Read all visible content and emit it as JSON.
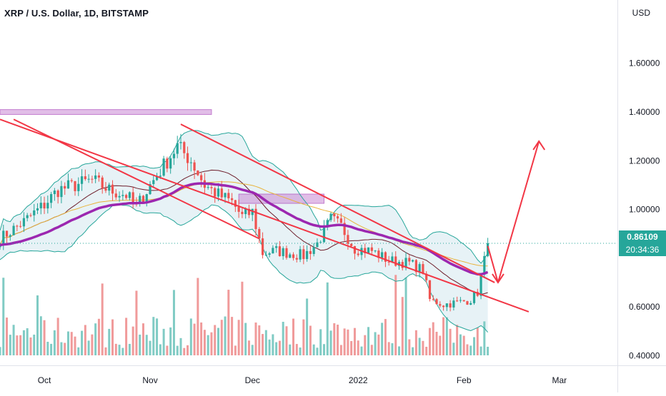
{
  "header": {
    "title": "XRP / U.S. Dollar, 1D, BITSTAMP",
    "currency": "USD"
  },
  "colors": {
    "up": "#26a69a",
    "down": "#ef5350",
    "volume_up": "#80cbc4",
    "volume_down": "#f09a9a",
    "bollinger": "#26a69a",
    "bollinger_fill": "#d7eaf0",
    "ema_long": "#9c27b0",
    "ma_slow": "#e8b33a",
    "ma_mid": "#6d1d2a",
    "trendline": "#f23645",
    "zone_fill": "#ce93d8",
    "zone_edge": "#9c27b0",
    "price_line": "#26a69a",
    "axis_line": "#e0e3eb"
  },
  "price_badge": {
    "price": "0.86109",
    "countdown": "20:34:36"
  },
  "chart_data": {
    "type": "candlestick",
    "symbol": "XRP / U.S. Dollar",
    "interval": "1D",
    "exchange": "BITSTAMP",
    "y_axis": {
      "min": 0.36,
      "max": 1.86,
      "tick_values": [
        0.4,
        0.6,
        1.0,
        1.2,
        1.4,
        1.6
      ],
      "tick_labels": [
        "0.40000",
        "0.60000",
        "1.00000",
        "1.20000",
        "1.40000",
        "1.60000"
      ]
    },
    "x_axis": {
      "start": "2021-09-18",
      "end": "2022-03-18",
      "ticks": [
        {
          "date": "2021-10-01",
          "label": "Oct"
        },
        {
          "date": "2021-11-01",
          "label": "Nov"
        },
        {
          "date": "2021-12-01",
          "label": "Dec"
        },
        {
          "date": "2022-01-01",
          "label": "2022"
        },
        {
          "date": "2022-02-01",
          "label": "Feb"
        },
        {
          "date": "2022-03-01",
          "label": "Mar"
        }
      ]
    },
    "candle_anchors": [
      [
        "2021-09-18",
        0.88
      ],
      [
        "2021-09-25",
        0.95
      ],
      [
        "2021-10-01",
        1.02
      ],
      [
        "2021-10-05",
        1.08
      ],
      [
        "2021-10-10",
        1.1
      ],
      [
        "2021-10-15",
        1.12
      ],
      [
        "2021-10-20",
        1.08
      ],
      [
        "2021-10-25",
        1.06
      ],
      [
        "2021-10-28",
        1.01
      ],
      [
        "2021-11-01",
        1.1
      ],
      [
        "2021-11-05",
        1.18
      ],
      [
        "2021-11-09",
        1.26
      ],
      [
        "2021-11-13",
        1.2
      ],
      [
        "2021-11-17",
        1.1
      ],
      [
        "2021-11-21",
        1.06
      ],
      [
        "2021-11-25",
        1.03
      ],
      [
        "2021-11-28",
        0.97
      ],
      [
        "2021-12-01",
        0.99
      ],
      [
        "2021-12-04",
        0.82
      ],
      [
        "2021-12-08",
        0.83
      ],
      [
        "2021-12-12",
        0.82
      ],
      [
        "2021-12-16",
        0.81
      ],
      [
        "2021-12-20",
        0.86
      ],
      [
        "2021-12-24",
        0.96
      ],
      [
        "2021-12-27",
        0.93
      ],
      [
        "2021-12-31",
        0.84
      ],
      [
        "2022-01-05",
        0.83
      ],
      [
        "2022-01-10",
        0.79
      ],
      [
        "2022-01-16",
        0.78
      ],
      [
        "2022-01-20",
        0.75
      ],
      [
        "2022-01-22",
        0.63
      ],
      [
        "2022-01-26",
        0.61
      ],
      [
        "2022-01-31",
        0.62
      ],
      [
        "2022-02-03",
        0.63
      ],
      [
        "2022-02-05",
        0.66
      ],
      [
        "2022-02-07",
        0.79
      ],
      [
        "2022-02-08",
        0.86109
      ]
    ],
    "last_price": 0.86109,
    "horizontal_line": 0.86109,
    "zones": [
      {
        "from": "2021-09-18",
        "to": "2021-11-19",
        "high": 1.41,
        "low": 1.39
      },
      {
        "from": "2021-11-27",
        "to": "2021-12-22",
        "high": 1.063,
        "low": 1.025
      }
    ],
    "trendlines": [
      {
        "from": [
          "2021-09-18",
          1.37
        ],
        "to": [
          "2022-02-20",
          0.58
        ]
      },
      {
        "from": [
          "2021-09-22",
          1.37
        ],
        "to": [
          "2021-12-03",
          0.88
        ]
      },
      {
        "from": [
          "2021-11-10",
          1.35
        ],
        "to": [
          "2022-02-10",
          0.7
        ]
      },
      {
        "from": [
          "2022-02-08",
          0.85
        ],
        "to": [
          "2022-02-11",
          0.7
        ]
      },
      {
        "from": [
          "2022-02-11",
          0.7
        ],
        "to": [
          "2022-02-23",
          1.28
        ]
      }
    ],
    "arrowheads": [
      {
        "at": [
          "2022-02-11",
          0.7
        ],
        "direction": "down"
      },
      {
        "at": [
          "2022-02-23",
          1.28
        ],
        "direction": "up"
      }
    ],
    "indicators": [
      "Bollinger Bands",
      "EMA (purple)",
      "SMA (orange)",
      "SMA (maroon)",
      "Volume"
    ]
  }
}
